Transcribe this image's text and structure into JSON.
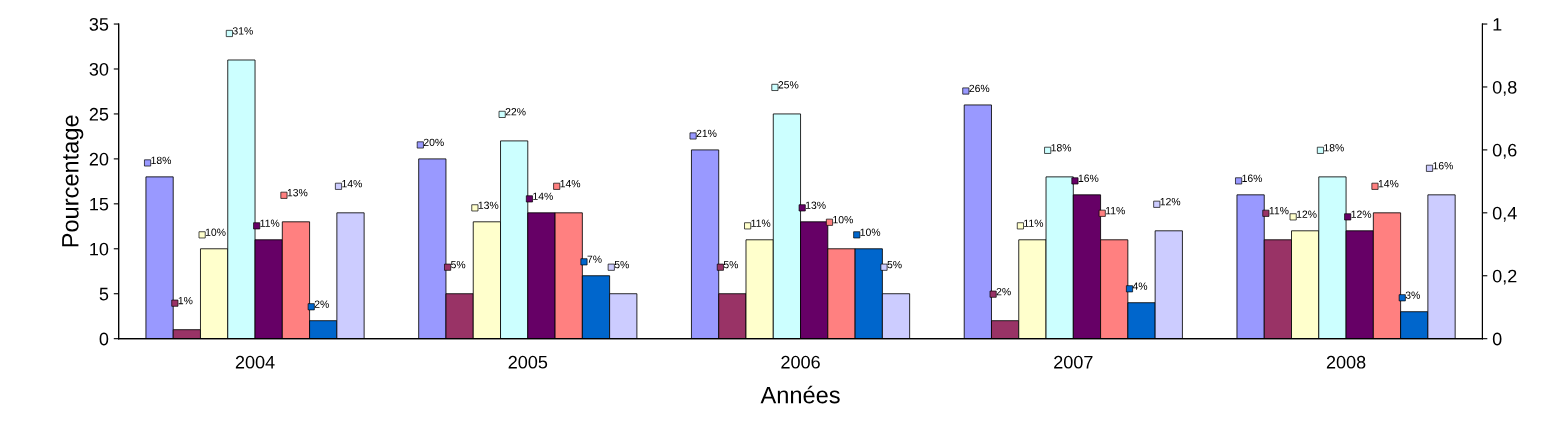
{
  "chart_data": {
    "type": "bar",
    "xlabel": "Années",
    "ylabel": "Pourcentage",
    "categories": [
      "2004",
      "2005",
      "2006",
      "2007",
      "2008"
    ],
    "series": [
      {
        "color": "#9999ff",
        "values": [
          18,
          20,
          21,
          26,
          16
        ],
        "value_labels": [
          "18%",
          "20%",
          "21%",
          "26%",
          "16%"
        ]
      },
      {
        "color": "#993366",
        "values": [
          1,
          5,
          5,
          2,
          11
        ],
        "value_labels": [
          "1%",
          "5%",
          "5%",
          "2%",
          "11%"
        ]
      },
      {
        "color": "#ffffcc",
        "values": [
          10,
          13,
          11,
          11,
          12
        ],
        "value_labels": [
          "10%",
          "13%",
          "11%",
          "11%",
          "12%"
        ]
      },
      {
        "color": "#ccffff",
        "values": [
          31,
          22,
          25,
          18,
          18
        ],
        "value_labels": [
          "31%",
          "22%",
          "25%",
          "18%",
          "18%"
        ]
      },
      {
        "color": "#660066",
        "values": [
          11,
          14,
          13,
          16,
          12
        ],
        "value_labels": [
          "11%",
          "14%",
          "13%",
          "16%",
          "12%"
        ]
      },
      {
        "color": "#ff8080",
        "values": [
          13,
          14,
          10,
          11,
          14
        ],
        "value_labels": [
          "13%",
          "14%",
          "10%",
          "11%",
          "14%"
        ]
      },
      {
        "color": "#0066cc",
        "values": [
          2,
          7,
          10,
          4,
          3
        ],
        "value_labels": [
          "2%",
          "7%",
          "10%",
          "4%",
          "3%"
        ]
      },
      {
        "color": "#ccccff",
        "values": [
          14,
          5,
          5,
          12,
          16
        ],
        "value_labels": [
          "14%",
          "5%",
          "5%",
          "12%",
          "16%"
        ]
      }
    ],
    "ylim": [
      0,
      35
    ],
    "yticks": [
      0,
      5,
      10,
      15,
      20,
      25,
      30,
      35
    ],
    "y2lim": [
      0,
      1
    ],
    "y2ticks": [
      0,
      {
        "value": 0.2,
        "label": "0,2"
      },
      {
        "value": 0.4,
        "label": "0,4"
      },
      {
        "value": 0.6,
        "label": "0,6"
      },
      {
        "value": 0.8,
        "label": "0,8"
      },
      1
    ],
    "grid": false,
    "legend": false
  }
}
